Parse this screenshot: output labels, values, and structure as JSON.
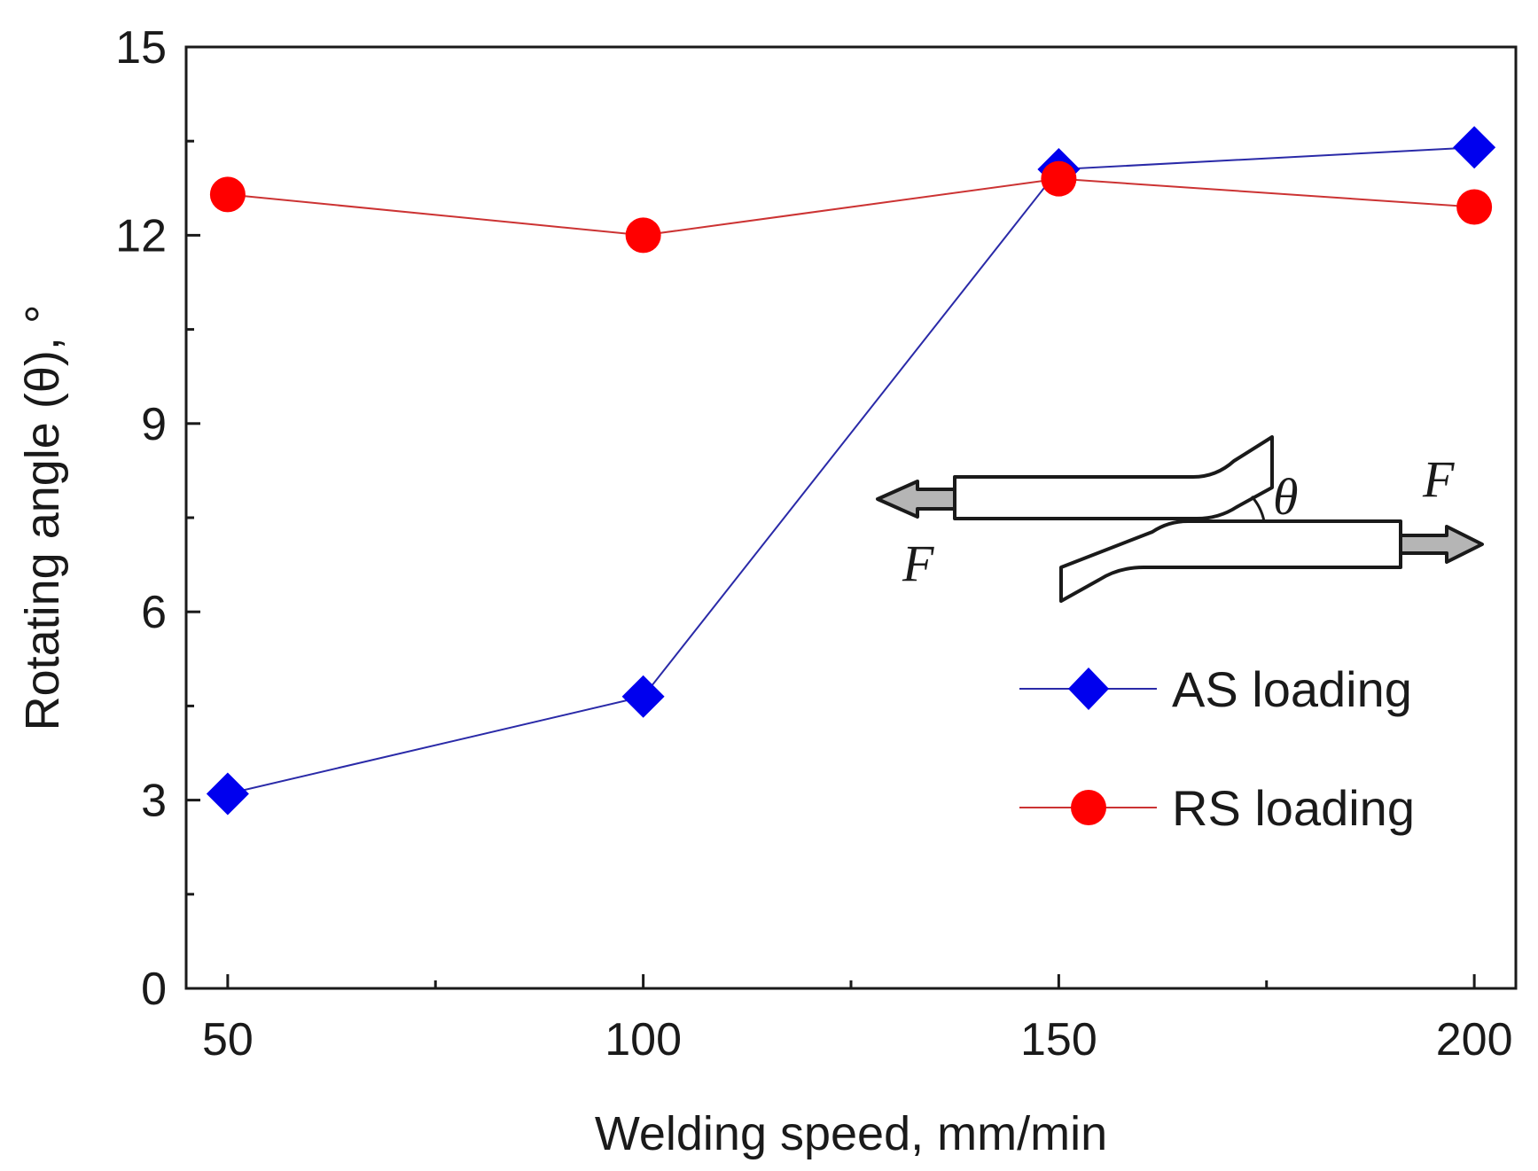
{
  "chart_data": {
    "type": "line",
    "title": "",
    "xlabel": "Welding speed, mm/min",
    "ylabel": "Rotating angle (θ), °",
    "x": [
      50,
      100,
      150,
      200
    ],
    "xlim": [
      45,
      205
    ],
    "ylim": [
      0,
      15
    ],
    "x_ticks": [
      "50",
      "100",
      "150",
      "200"
    ],
    "y_ticks": [
      "0",
      "3",
      "6",
      "9",
      "12",
      "15"
    ],
    "x_tick_values": [
      50,
      100,
      150,
      200
    ],
    "y_tick_values": [
      0,
      3,
      6,
      9,
      12,
      15
    ],
    "grid": false,
    "legend_position": "bottom-right",
    "series": [
      {
        "name": "AS loading",
        "values": [
          3.1,
          4.65,
          13.05,
          13.4
        ],
        "color": "#2a2aa8",
        "marker_color": "#0000ee",
        "marker": "diamond"
      },
      {
        "name": "RS loading",
        "values": [
          12.65,
          12.0,
          12.9,
          12.45
        ],
        "color": "#cc3333",
        "marker_color": "#ff0000",
        "marker": "circle"
      }
    ],
    "inset": {
      "force_left": "F",
      "force_right": "F",
      "angle": "θ"
    }
  }
}
